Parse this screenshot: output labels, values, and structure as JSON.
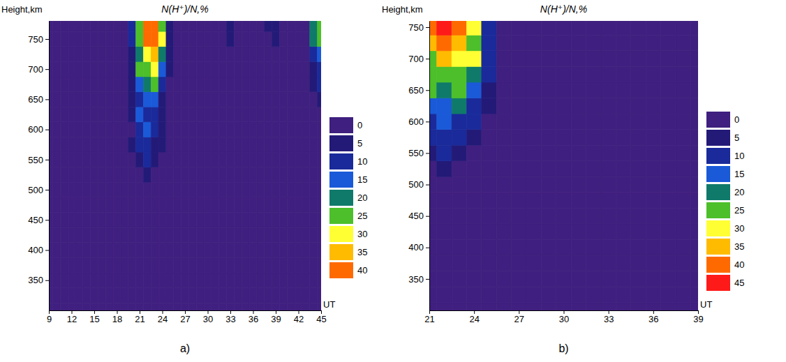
{
  "chart_data": [
    {
      "type": "heatmap",
      "title": "N(H⁺)/N,%",
      "panel_label": "a)",
      "x_label": "UT",
      "y_label": "Height,km",
      "xlim": [
        9,
        45
      ],
      "xticks": [
        9,
        12,
        15,
        18,
        21,
        24,
        27,
        30,
        33,
        36,
        39,
        42,
        45
      ],
      "ylim": [
        300,
        780
      ],
      "yticks": [
        350,
        400,
        450,
        500,
        550,
        600,
        650,
        700,
        750
      ],
      "color_levels": [
        0,
        5,
        10,
        15,
        20,
        25,
        30,
        35,
        40
      ],
      "colors": [
        "#3f1f7f",
        "#231a78",
        "#1a2a9a",
        "#1a5ad8",
        "#0f7a6a",
        "#4cbf2a",
        "#ffff33",
        "#ffbb00",
        "#ff6a00"
      ],
      "x": [
        9,
        10,
        11,
        12,
        13,
        14,
        15,
        16,
        17,
        18,
        19,
        20,
        21,
        22,
        23,
        24,
        25,
        26,
        27,
        28,
        29,
        30,
        31,
        32,
        33,
        34,
        35,
        36,
        37,
        38,
        39,
        40,
        41,
        42,
        43,
        44,
        45
      ],
      "y": [
        300,
        325,
        350,
        375,
        400,
        425,
        450,
        475,
        500,
        525,
        550,
        575,
        600,
        625,
        650,
        675,
        700,
        725,
        750,
        775
      ],
      "z": [
        [
          1,
          2,
          3,
          2,
          1,
          2,
          3,
          2,
          1,
          2,
          2,
          1,
          2,
          3,
          2,
          1,
          2,
          2,
          3,
          1,
          1,
          2,
          3,
          2,
          1,
          2,
          3,
          2,
          1,
          2,
          1,
          2,
          2,
          3,
          1,
          2,
          2
        ],
        [
          2,
          1,
          2,
          3,
          2,
          1,
          2,
          2,
          3,
          1,
          1,
          2,
          3,
          2,
          1,
          2,
          3,
          2,
          1,
          2,
          2,
          1,
          2,
          3,
          2,
          1,
          2,
          2,
          3,
          1,
          2,
          1,
          2,
          3,
          2,
          1,
          2
        ],
        [
          1,
          2,
          3,
          2,
          1,
          2,
          3,
          2,
          1,
          2,
          2,
          1,
          2,
          3,
          2,
          1,
          2,
          2,
          3,
          1,
          1,
          2,
          3,
          2,
          1,
          2,
          3,
          2,
          1,
          2,
          1,
          2,
          2,
          3,
          1,
          2,
          2
        ],
        [
          2,
          1,
          2,
          3,
          2,
          1,
          2,
          2,
          3,
          1,
          1,
          2,
          3,
          2,
          1,
          2,
          3,
          2,
          1,
          2,
          2,
          1,
          2,
          3,
          2,
          1,
          2,
          2,
          3,
          1,
          2,
          1,
          2,
          3,
          2,
          1,
          2
        ],
        [
          1,
          2,
          3,
          2,
          1,
          2,
          3,
          2,
          1,
          2,
          2,
          1,
          2,
          3,
          2,
          1,
          2,
          2,
          3,
          1,
          1,
          2,
          3,
          2,
          1,
          2,
          3,
          2,
          1,
          2,
          1,
          2,
          2,
          3,
          1,
          2,
          2
        ],
        [
          2,
          1,
          2,
          3,
          2,
          1,
          2,
          2,
          3,
          1,
          1,
          2,
          3,
          2,
          1,
          2,
          3,
          2,
          1,
          2,
          2,
          1,
          2,
          3,
          2,
          1,
          2,
          2,
          3,
          1,
          2,
          1,
          2,
          3,
          2,
          1,
          2
        ],
        [
          1,
          2,
          3,
          2,
          1,
          2,
          3,
          2,
          1,
          2,
          2,
          1,
          2,
          3,
          2,
          1,
          2,
          2,
          3,
          1,
          1,
          2,
          3,
          2,
          1,
          2,
          3,
          2,
          1,
          2,
          1,
          2,
          2,
          3,
          1,
          2,
          2
        ],
        [
          2,
          1,
          2,
          3,
          2,
          1,
          2,
          2,
          3,
          1,
          1,
          2,
          3,
          2,
          1,
          2,
          3,
          2,
          1,
          2,
          2,
          1,
          2,
          3,
          2,
          1,
          2,
          2,
          3,
          1,
          2,
          1,
          2,
          3,
          2,
          1,
          2
        ],
        [
          1,
          2,
          3,
          2,
          1,
          2,
          3,
          2,
          1,
          2,
          2,
          1,
          2,
          3,
          2,
          1,
          2,
          2,
          3,
          1,
          1,
          2,
          3,
          2,
          1,
          2,
          3,
          2,
          1,
          2,
          1,
          2,
          2,
          3,
          1,
          2,
          2
        ],
        [
          2,
          1,
          2,
          3,
          2,
          1,
          2,
          2,
          3,
          1,
          2,
          1,
          2,
          6,
          2,
          1,
          2,
          2,
          3,
          1,
          2,
          1,
          2,
          3,
          2,
          1,
          2,
          2,
          3,
          1,
          2,
          1,
          2,
          3,
          2,
          1,
          2
        ],
        [
          2,
          1,
          2,
          3,
          2,
          1,
          2,
          2,
          3,
          1,
          2,
          1,
          8,
          10,
          8,
          4,
          2,
          2,
          3,
          1,
          2,
          1,
          2,
          3,
          2,
          1,
          2,
          2,
          3,
          1,
          2,
          1,
          2,
          3,
          2,
          1,
          2
        ],
        [
          2,
          1,
          2,
          3,
          2,
          1,
          2,
          2,
          3,
          1,
          2,
          8,
          10,
          12,
          8,
          5,
          2,
          2,
          3,
          1,
          2,
          1,
          2,
          3,
          2,
          1,
          2,
          2,
          3,
          1,
          2,
          1,
          2,
          3,
          2,
          1,
          2
        ],
        [
          2,
          1,
          2,
          3,
          2,
          1,
          2,
          2,
          3,
          1,
          2,
          4,
          12,
          15,
          12,
          6,
          2,
          2,
          3,
          1,
          2,
          1,
          2,
          3,
          2,
          1,
          2,
          2,
          3,
          1,
          2,
          1,
          2,
          3,
          2,
          1,
          2
        ],
        [
          2,
          1,
          2,
          3,
          2,
          1,
          2,
          2,
          3,
          1,
          2,
          5,
          15,
          12,
          10,
          6,
          2,
          2,
          3,
          1,
          2,
          1,
          2,
          3,
          2,
          1,
          2,
          2,
          3,
          1,
          2,
          1,
          2,
          3,
          2,
          1,
          2
        ],
        [
          2,
          1,
          2,
          3,
          2,
          1,
          2,
          2,
          3,
          1,
          2,
          6,
          12,
          15,
          15,
          8,
          2,
          2,
          3,
          1,
          2,
          1,
          2,
          3,
          2,
          1,
          2,
          2,
          3,
          1,
          2,
          1,
          2,
          3,
          2,
          1,
          6
        ],
        [
          2,
          1,
          2,
          3,
          2,
          1,
          2,
          2,
          3,
          1,
          2,
          6,
          15,
          20,
          25,
          12,
          3,
          2,
          3,
          1,
          2,
          1,
          2,
          3,
          2,
          1,
          2,
          2,
          3,
          1,
          2,
          1,
          2,
          3,
          2,
          6,
          10
        ],
        [
          2,
          1,
          2,
          3,
          2,
          1,
          2,
          2,
          3,
          1,
          2,
          8,
          25,
          28,
          30,
          15,
          5,
          2,
          3,
          1,
          2,
          1,
          2,
          3,
          2,
          1,
          2,
          2,
          3,
          1,
          2,
          1,
          2,
          3,
          2,
          8,
          12
        ],
        [
          2,
          1,
          2,
          3,
          2,
          1,
          2,
          2,
          3,
          1,
          2,
          8,
          20,
          30,
          35,
          20,
          6,
          2,
          3,
          1,
          2,
          1,
          2,
          3,
          4,
          1,
          2,
          2,
          3,
          1,
          2,
          1,
          2,
          3,
          2,
          10,
          15
        ],
        [
          2,
          1,
          2,
          3,
          2,
          1,
          2,
          2,
          3,
          1,
          2,
          10,
          25,
          40,
          45,
          30,
          8,
          2,
          3,
          1,
          2,
          1,
          2,
          3,
          6,
          1,
          2,
          2,
          3,
          1,
          6,
          1,
          2,
          3,
          2,
          20,
          25
        ],
        [
          2,
          1,
          2,
          3,
          2,
          1,
          2,
          2,
          3,
          1,
          2,
          10,
          25,
          40,
          42,
          28,
          8,
          2,
          3,
          1,
          2,
          1,
          2,
          3,
          8,
          1,
          2,
          2,
          3,
          6,
          7,
          1,
          2,
          3,
          2,
          22,
          25
        ]
      ]
    },
    {
      "type": "heatmap",
      "title": "N(H⁺)/N,%",
      "panel_label": "b)",
      "x_label": "UT",
      "y_label": "Height,km",
      "xlim": [
        21,
        39
      ],
      "xticks": [
        21,
        24,
        27,
        30,
        33,
        36,
        39
      ],
      "ylim": [
        300,
        760
      ],
      "yticks": [
        350,
        400,
        450,
        500,
        550,
        600,
        650,
        700,
        750
      ],
      "color_levels": [
        0,
        5,
        10,
        15,
        20,
        25,
        30,
        35,
        40,
        45
      ],
      "colors": [
        "#3f1f7f",
        "#231a78",
        "#1a2a9a",
        "#1a5ad8",
        "#0f7a6a",
        "#4cbf2a",
        "#ffff33",
        "#ffbb00",
        "#ff6a00",
        "#ff1a1a"
      ],
      "x": [
        21,
        22,
        23,
        24,
        25,
        26,
        27,
        28,
        29,
        30,
        31,
        32,
        33,
        34,
        35,
        36,
        37,
        38,
        39
      ],
      "y": [
        300,
        325,
        350,
        375,
        400,
        425,
        450,
        475,
        500,
        525,
        550,
        575,
        600,
        625,
        650,
        675,
        700,
        725,
        750
      ],
      "z": [
        [
          1,
          2,
          3,
          2,
          1,
          2,
          3,
          2,
          1,
          2,
          1,
          2,
          2,
          3,
          1,
          2,
          2,
          1,
          2
        ],
        [
          2,
          1,
          2,
          3,
          2,
          1,
          2,
          2,
          3,
          1,
          2,
          1,
          2,
          3,
          2,
          1,
          2,
          2,
          3
        ],
        [
          1,
          2,
          3,
          2,
          1,
          2,
          3,
          2,
          1,
          2,
          1,
          2,
          2,
          3,
          1,
          2,
          2,
          1,
          2
        ],
        [
          2,
          1,
          2,
          3,
          2,
          1,
          2,
          2,
          3,
          1,
          2,
          1,
          2,
          3,
          2,
          1,
          2,
          2,
          3
        ],
        [
          1,
          2,
          3,
          2,
          1,
          2,
          3,
          2,
          1,
          2,
          1,
          2,
          2,
          3,
          1,
          2,
          2,
          1,
          2
        ],
        [
          2,
          1,
          2,
          3,
          2,
          1,
          2,
          2,
          3,
          1,
          2,
          1,
          2,
          3,
          2,
          1,
          2,
          2,
          3
        ],
        [
          1,
          2,
          3,
          2,
          1,
          2,
          3,
          2,
          1,
          2,
          1,
          2,
          2,
          3,
          1,
          2,
          2,
          1,
          2
        ],
        [
          2,
          1,
          2,
          3,
          2,
          1,
          2,
          2,
          3,
          1,
          2,
          1,
          2,
          3,
          2,
          1,
          2,
          2,
          3
        ],
        [
          1,
          2,
          3,
          2,
          1,
          2,
          3,
          2,
          1,
          2,
          1,
          2,
          2,
          3,
          1,
          2,
          2,
          1,
          2
        ],
        [
          3,
          6,
          3,
          3,
          2,
          1,
          2,
          2,
          3,
          1,
          2,
          1,
          2,
          3,
          2,
          1,
          2,
          2,
          3
        ],
        [
          8,
          10,
          8,
          4,
          2,
          1,
          2,
          2,
          3,
          1,
          2,
          1,
          2,
          3,
          2,
          1,
          2,
          2,
          3
        ],
        [
          10,
          12,
          10,
          8,
          3,
          1,
          2,
          2,
          3,
          1,
          2,
          1,
          2,
          3,
          2,
          1,
          2,
          2,
          3
        ],
        [
          12,
          15,
          12,
          10,
          4,
          1,
          2,
          2,
          3,
          1,
          2,
          1,
          2,
          3,
          2,
          1,
          2,
          2,
          3
        ],
        [
          15,
          18,
          20,
          12,
          8,
          2,
          2,
          2,
          3,
          1,
          2,
          1,
          2,
          3,
          2,
          1,
          2,
          2,
          3
        ],
        [
          25,
          20,
          25,
          15,
          8,
          2,
          2,
          2,
          3,
          1,
          2,
          1,
          2,
          3,
          2,
          1,
          2,
          2,
          3
        ],
        [
          25,
          28,
          25,
          20,
          10,
          3,
          2,
          2,
          3,
          1,
          2,
          1,
          2,
          3,
          2,
          1,
          2,
          2,
          3
        ],
        [
          25,
          35,
          30,
          30,
          12,
          4,
          2,
          2,
          3,
          1,
          2,
          1,
          2,
          3,
          2,
          1,
          2,
          2,
          3
        ],
        [
          35,
          40,
          35,
          25,
          12,
          4,
          2,
          2,
          3,
          1,
          2,
          1,
          2,
          3,
          2,
          1,
          2,
          2,
          3
        ],
        [
          40,
          45,
          40,
          30,
          10,
          3,
          2,
          2,
          3,
          1,
          2,
          1,
          2,
          3,
          2,
          1,
          2,
          2,
          3
        ]
      ]
    }
  ]
}
